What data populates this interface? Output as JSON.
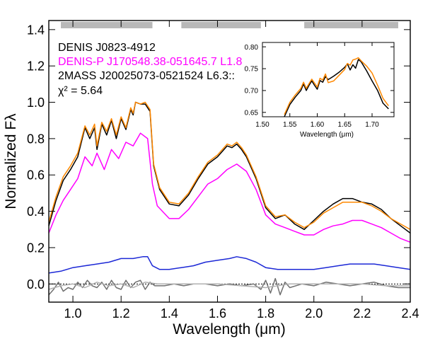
{
  "chart_data": [
    {
      "type": "line",
      "xlabel": "Wavelength (μm)",
      "ylabel": "Normalized Fλ",
      "xlim": [
        0.9,
        2.4
      ],
      "ylim": [
        -0.1,
        1.45
      ],
      "x_ticks": [
        1.0,
        1.2,
        1.4,
        1.6,
        1.8,
        2.0,
        2.2,
        2.4
      ],
      "x_tick_labels": [
        "1.0",
        "1.2",
        "1.4",
        "1.6",
        "1.8",
        "2.0",
        "2.2",
        "2.4"
      ],
      "y_ticks": [
        0.0,
        0.2,
        0.4,
        0.6,
        0.8,
        1.0,
        1.2,
        1.4
      ],
      "y_tick_labels": [
        "0.0",
        "0.2",
        "0.4",
        "0.6",
        "0.8",
        "1.0",
        "1.2",
        "1.4"
      ],
      "telluric_bands": [
        [
          0.95,
          1.33
        ],
        [
          1.45,
          1.78
        ],
        [
          1.96,
          2.35
        ]
      ],
      "zero_line": 0.0,
      "legend": [
        {
          "label": "DENIS J0823-4912",
          "color": "#000000"
        },
        {
          "label": "DENIS-P J170548.38-051645.7 L1.8",
          "color": "#ff00ff"
        },
        {
          "label": "2MASS J20025073-0521524 L6.3::",
          "color": "#000000"
        },
        {
          "label": "χ² = 5.64",
          "color": "#000000"
        }
      ],
      "series": [
        {
          "color": "#000000",
          "x": [
            0.9,
            0.93,
            0.96,
            0.99,
            1.02,
            1.05,
            1.07,
            1.09,
            1.1,
            1.12,
            1.14,
            1.16,
            1.18,
            1.2,
            1.22,
            1.24,
            1.25,
            1.26,
            1.28,
            1.3,
            1.32,
            1.335,
            1.36,
            1.4,
            1.44,
            1.48,
            1.52,
            1.56,
            1.6,
            1.64,
            1.66,
            1.68,
            1.7,
            1.72,
            1.76,
            1.8,
            1.84,
            1.88,
            1.92,
            1.96,
            2.0,
            2.04,
            2.08,
            2.12,
            2.16,
            2.2,
            2.24,
            2.28,
            2.32,
            2.36,
            2.4
          ],
          "values": [
            0.32,
            0.46,
            0.57,
            0.63,
            0.7,
            0.86,
            0.8,
            0.86,
            0.74,
            0.88,
            0.82,
            0.9,
            0.8,
            0.91,
            0.85,
            0.96,
            0.93,
            1.0,
            0.99,
            0.99,
            0.95,
            0.65,
            0.52,
            0.44,
            0.43,
            0.49,
            0.58,
            0.66,
            0.7,
            0.76,
            0.75,
            0.77,
            0.74,
            0.7,
            0.58,
            0.42,
            0.36,
            0.38,
            0.33,
            0.3,
            0.35,
            0.4,
            0.44,
            0.47,
            0.47,
            0.45,
            0.44,
            0.41,
            0.36,
            0.32,
            0.28
          ]
        },
        {
          "color": "#ff8800",
          "x": [
            0.9,
            0.93,
            0.96,
            0.99,
            1.02,
            1.05,
            1.07,
            1.09,
            1.1,
            1.12,
            1.14,
            1.16,
            1.18,
            1.2,
            1.22,
            1.24,
            1.25,
            1.26,
            1.28,
            1.3,
            1.32,
            1.335,
            1.36,
            1.4,
            1.44,
            1.48,
            1.52,
            1.56,
            1.6,
            1.64,
            1.66,
            1.68,
            1.7,
            1.72,
            1.76,
            1.8,
            1.84,
            1.88,
            1.92,
            1.96,
            2.0,
            2.04,
            2.08,
            2.12,
            2.16,
            2.2,
            2.24,
            2.28,
            2.32,
            2.36,
            2.4
          ],
          "values": [
            0.34,
            0.48,
            0.59,
            0.65,
            0.72,
            0.87,
            0.82,
            0.88,
            0.76,
            0.89,
            0.84,
            0.91,
            0.82,
            0.92,
            0.86,
            0.97,
            0.94,
            1.0,
            0.99,
            1.0,
            0.96,
            0.66,
            0.53,
            0.45,
            0.44,
            0.5,
            0.59,
            0.67,
            0.71,
            0.77,
            0.76,
            0.78,
            0.75,
            0.71,
            0.59,
            0.43,
            0.37,
            0.38,
            0.34,
            0.31,
            0.34,
            0.39,
            0.42,
            0.45,
            0.45,
            0.45,
            0.43,
            0.4,
            0.36,
            0.33,
            0.3
          ]
        },
        {
          "color": "#ff00ff",
          "x": [
            0.9,
            0.93,
            0.96,
            0.99,
            1.02,
            1.05,
            1.08,
            1.1,
            1.13,
            1.16,
            1.19,
            1.22,
            1.25,
            1.28,
            1.31,
            1.33,
            1.35,
            1.4,
            1.44,
            1.48,
            1.52,
            1.56,
            1.6,
            1.64,
            1.68,
            1.72,
            1.76,
            1.8,
            1.84,
            1.88,
            1.92,
            1.96,
            2.0,
            2.04,
            2.08,
            2.12,
            2.16,
            2.2,
            2.24,
            2.28,
            2.32,
            2.36,
            2.4
          ],
          "values": [
            0.28,
            0.38,
            0.46,
            0.52,
            0.58,
            0.7,
            0.65,
            0.72,
            0.63,
            0.74,
            0.69,
            0.78,
            0.76,
            0.83,
            0.8,
            0.55,
            0.43,
            0.36,
            0.36,
            0.41,
            0.48,
            0.55,
            0.58,
            0.63,
            0.66,
            0.62,
            0.52,
            0.38,
            0.33,
            0.31,
            0.29,
            0.27,
            0.27,
            0.3,
            0.32,
            0.33,
            0.35,
            0.35,
            0.33,
            0.31,
            0.28,
            0.25,
            0.23
          ]
        },
        {
          "color": "#1c28d6",
          "x": [
            0.9,
            0.95,
            1.0,
            1.05,
            1.1,
            1.15,
            1.2,
            1.25,
            1.29,
            1.31,
            1.33,
            1.36,
            1.4,
            1.45,
            1.5,
            1.55,
            1.6,
            1.65,
            1.68,
            1.72,
            1.76,
            1.8,
            1.85,
            1.9,
            1.95,
            2.0,
            2.05,
            2.1,
            2.15,
            2.2,
            2.25,
            2.3,
            2.35,
            2.4
          ],
          "values": [
            0.06,
            0.07,
            0.09,
            0.1,
            0.11,
            0.12,
            0.14,
            0.14,
            0.15,
            0.15,
            0.1,
            0.08,
            0.08,
            0.09,
            0.1,
            0.12,
            0.13,
            0.14,
            0.15,
            0.14,
            0.12,
            0.09,
            0.08,
            0.08,
            0.08,
            0.08,
            0.09,
            0.1,
            0.11,
            0.11,
            0.11,
            0.1,
            0.09,
            0.08
          ]
        },
        {
          "color": "#707070",
          "x": [
            0.9,
            0.92,
            0.94,
            0.96,
            0.98,
            1.0,
            1.02,
            1.04,
            1.06,
            1.08,
            1.1,
            1.12,
            1.14,
            1.16,
            1.18,
            1.2,
            1.22,
            1.24,
            1.26,
            1.28,
            1.3,
            1.32,
            1.34,
            1.38,
            1.42,
            1.46,
            1.5,
            1.55,
            1.6,
            1.65,
            1.7,
            1.75,
            1.78,
            1.8,
            1.82,
            1.84,
            1.86,
            1.88,
            1.9,
            1.95,
            2.0,
            2.05,
            2.1,
            2.15,
            2.2,
            2.25,
            2.3,
            2.35,
            2.4
          ],
          "values": [
            -0.06,
            -0.03,
            0.01,
            -0.04,
            -0.02,
            -0.03,
            0.01,
            -0.02,
            0.02,
            -0.01,
            -0.02,
            0.01,
            -0.03,
            0.02,
            -0.02,
            -0.03,
            0.02,
            -0.02,
            0.01,
            0.02,
            -0.03,
            0.01,
            -0.01,
            -0.01,
            0.0,
            -0.01,
            0.0,
            0.0,
            -0.01,
            0.0,
            -0.01,
            0.0,
            -0.03,
            0.02,
            -0.05,
            0.03,
            -0.06,
            0.01,
            -0.02,
            0.0,
            -0.01,
            0.01,
            0.0,
            -0.01,
            0.0,
            0.01,
            -0.01,
            -0.02,
            -0.02
          ]
        },
        {
          "color": "#b0b0b0",
          "x": [
            0.9,
            0.95,
            1.0,
            1.05,
            1.1,
            1.15,
            1.2,
            1.25,
            1.3,
            1.35,
            1.4,
            1.5,
            1.6,
            1.7,
            1.8,
            1.9,
            2.0,
            2.1,
            2.2,
            2.3,
            2.4
          ],
          "values": [
            -0.03,
            -0.01,
            0.0,
            -0.02,
            0.01,
            -0.01,
            0.0,
            -0.02,
            0.01,
            0.0,
            0.0,
            0.0,
            0.0,
            -0.01,
            -0.02,
            0.0,
            0.0,
            0.0,
            0.0,
            -0.01,
            -0.01
          ]
        }
      ]
    },
    {
      "type": "line",
      "xlabel": "Wavelength (μm)",
      "ylabel": "",
      "xlim": [
        1.5,
        1.74
      ],
      "ylim": [
        0.64,
        0.81
      ],
      "x_ticks": [
        1.5,
        1.55,
        1.6,
        1.65,
        1.7
      ],
      "x_tick_labels": [
        "1.50",
        "1.55",
        "1.60",
        "1.65",
        "1.70"
      ],
      "y_ticks": [
        0.65,
        0.7,
        0.75,
        0.8
      ],
      "y_tick_labels": [
        "0.65",
        "0.70",
        "0.75",
        "0.80"
      ],
      "series": [
        {
          "color": "#000000",
          "x": [
            1.54,
            1.55,
            1.56,
            1.57,
            1.575,
            1.58,
            1.585,
            1.59,
            1.595,
            1.6,
            1.605,
            1.61,
            1.615,
            1.62,
            1.63,
            1.64,
            1.65,
            1.655,
            1.66,
            1.665,
            1.67,
            1.675,
            1.68,
            1.69,
            1.7,
            1.71,
            1.72,
            1.73
          ],
          "values": [
            0.64,
            0.668,
            0.685,
            0.7,
            0.715,
            0.7,
            0.712,
            0.722,
            0.712,
            0.703,
            0.723,
            0.719,
            0.732,
            0.725,
            0.733,
            0.742,
            0.753,
            0.761,
            0.747,
            0.759,
            0.751,
            0.771,
            0.766,
            0.745,
            0.722,
            0.7,
            0.671,
            0.658
          ]
        },
        {
          "color": "#ff8800",
          "x": [
            1.54,
            1.55,
            1.56,
            1.57,
            1.575,
            1.58,
            1.585,
            1.59,
            1.595,
            1.6,
            1.605,
            1.61,
            1.615,
            1.62,
            1.63,
            1.64,
            1.65,
            1.655,
            1.66,
            1.665,
            1.67,
            1.675,
            1.68,
            1.69,
            1.7,
            1.71,
            1.72,
            1.73
          ],
          "values": [
            0.645,
            0.673,
            0.69,
            0.705,
            0.719,
            0.705,
            0.716,
            0.726,
            0.717,
            0.708,
            0.728,
            0.724,
            0.738,
            0.718,
            0.722,
            0.735,
            0.748,
            0.762,
            0.758,
            0.77,
            0.772,
            0.775,
            0.768,
            0.756,
            0.74,
            0.712,
            0.682,
            0.665
          ]
        }
      ]
    }
  ]
}
